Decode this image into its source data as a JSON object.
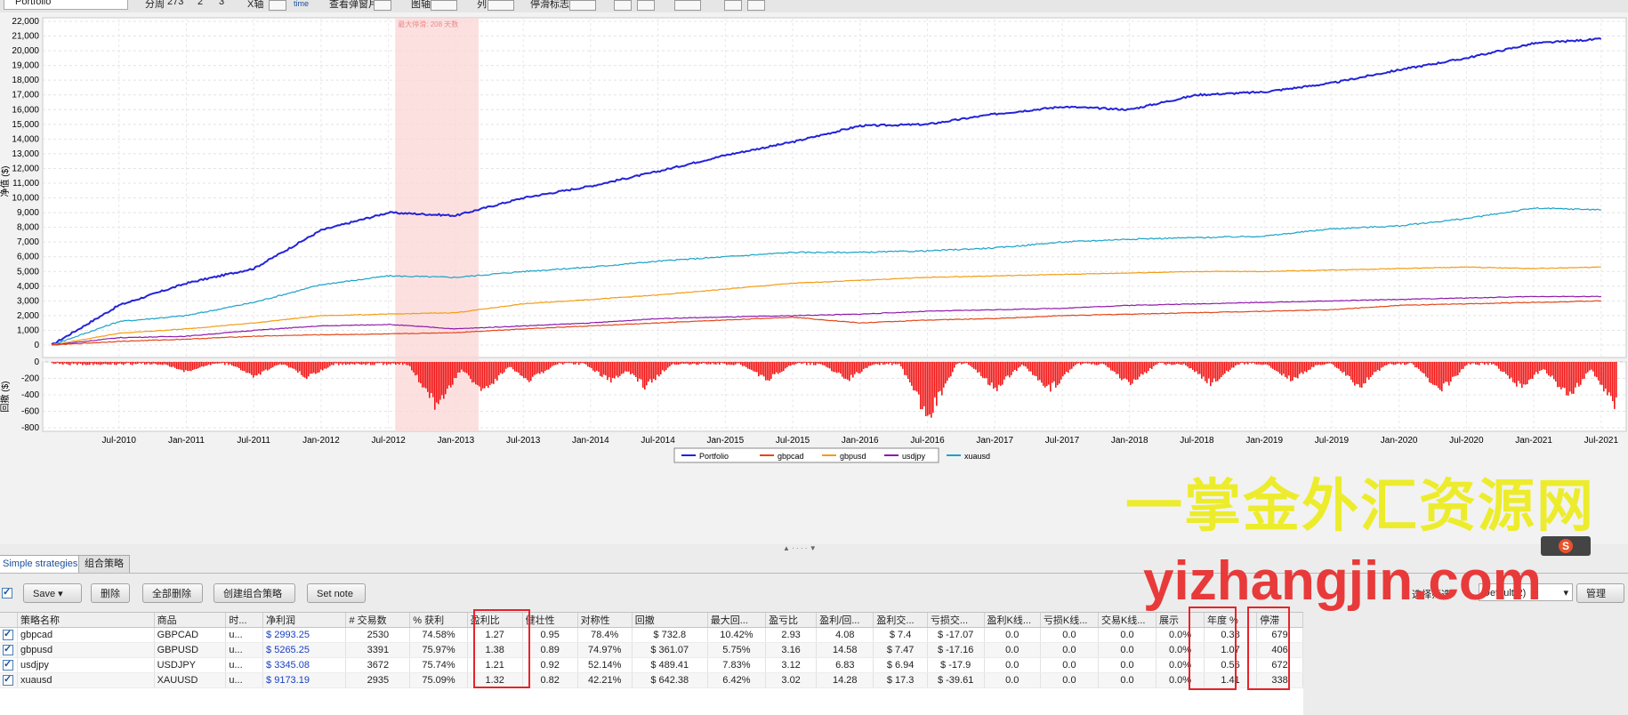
{
  "toolbar": {
    "portfolio_select": "Portfolio",
    "period_label": "分周",
    "period_value": "273",
    "period_opt2": "2",
    "period_opt3": "3",
    "xaxis_label": "X轴",
    "time_label": "time",
    "view_label": "查看弹窗片",
    "chart_label": "图轴",
    "col_label": "列",
    "stop_label": "停滑标志"
  },
  "chart": {
    "drawdown_annotation": "最大停滑: 208 天数",
    "y_label_top": "净值 ($)",
    "y_label_bottom": "回撤 ($)",
    "legend": [
      {
        "name": "Portfolio",
        "color": "#2323d8"
      },
      {
        "name": "gbpcad",
        "color": "#e2471b"
      },
      {
        "name": "gbpusd",
        "color": "#f39c12"
      },
      {
        "name": "usdjpy",
        "color": "#8e1aab"
      },
      {
        "name": "xuausd",
        "color": "#1aa3c8"
      }
    ]
  },
  "chart_data": {
    "type": "line",
    "ylim": [
      0,
      22000
    ],
    "yticks": [
      "0",
      "1,000",
      "2,000",
      "3,000",
      "4,000",
      "5,000",
      "6,000",
      "7,000",
      "8,000",
      "9,000",
      "10,000",
      "11,000",
      "12,000",
      "13,000",
      "14,000",
      "15,000",
      "16,000",
      "17,000",
      "18,000",
      "19,000",
      "20,000",
      "21,000",
      "22,000"
    ],
    "x_tick_labels": [
      "Jul-2010",
      "Jan-2011",
      "Jul-2011",
      "Jan-2012",
      "Jul-2012",
      "Jan-2013",
      "Jul-2013",
      "Jan-2014",
      "Jul-2014",
      "Jan-2015",
      "Jul-2015",
      "Jan-2016",
      "Jul-2016",
      "Jan-2017",
      "Jul-2017",
      "Jan-2018",
      "Jul-2018",
      "Jan-2019",
      "Jul-2019",
      "Jan-2020",
      "Jul-2020",
      "Jan-2021",
      "Jul-2021"
    ],
    "x_years": [
      2010.0,
      2010.5,
      2011.0,
      2011.5,
      2012.0,
      2012.5,
      2013.0,
      2013.5,
      2014.0,
      2014.5,
      2015.0,
      2015.5,
      2016.0,
      2016.5,
      2017.0,
      2017.5,
      2018.0,
      2018.5,
      2019.0,
      2019.5,
      2020.0,
      2020.5,
      2021.0,
      2021.5
    ],
    "series": [
      {
        "name": "Portfolio",
        "values": [
          0,
          2700,
          4200,
          5200,
          7800,
          9000,
          8800,
          10000,
          10800,
          11800,
          12900,
          13800,
          14900,
          15000,
          15700,
          16200,
          16000,
          17000,
          17200,
          17800,
          18700,
          19500,
          20500,
          20800
        ]
      },
      {
        "name": "xuausd",
        "values": [
          0,
          1600,
          2000,
          2900,
          4100,
          4700,
          4600,
          5000,
          5300,
          5700,
          6000,
          6300,
          6300,
          6400,
          6600,
          7000,
          7200,
          7300,
          7400,
          7900,
          8100,
          8600,
          9300,
          9200
        ]
      },
      {
        "name": "gbpusd",
        "values": [
          0,
          800,
          1100,
          1500,
          2000,
          2100,
          2200,
          2800,
          3100,
          3400,
          3800,
          4200,
          4400,
          4600,
          4700,
          4800,
          4900,
          5000,
          5000,
          5100,
          5200,
          5300,
          5200,
          5300
        ]
      },
      {
        "name": "usdjpy",
        "values": [
          0,
          500,
          600,
          1000,
          1300,
          1400,
          1100,
          1300,
          1500,
          1800,
          1900,
          2000,
          2100,
          2300,
          2400,
          2500,
          2700,
          2800,
          2900,
          3000,
          3100,
          3200,
          3300,
          3300
        ]
      },
      {
        "name": "gbpcad",
        "values": [
          0,
          250,
          400,
          600,
          700,
          750,
          850,
          1100,
          1300,
          1500,
          1700,
          1900,
          1500,
          1700,
          1800,
          2000,
          2100,
          2200,
          2300,
          2400,
          2700,
          2800,
          2900,
          3000
        ]
      }
    ],
    "drawdown": {
      "ylim": [
        -800,
        0
      ],
      "yticks": [
        "0",
        "-200",
        "-400",
        "-600",
        "-800"
      ]
    }
  },
  "tabs": [
    {
      "label": "Simple strategies"
    },
    {
      "label": "组合策略"
    }
  ],
  "buttons": {
    "save": "Save",
    "delete": "删除",
    "delete_all": "全部删除",
    "create_combo": "创建组合策略",
    "set_note": "Set note",
    "filter_label": "选择筛选",
    "default_select": "Default(2)",
    "manage": "管理"
  },
  "table": {
    "headers": [
      "策略名称",
      "商品",
      "时...",
      "净利润",
      "# 交易数",
      "% 获利",
      "盈利比",
      "健壮性",
      "对称性",
      "回撤",
      "最大回...",
      "盈亏比",
      "盈利/回...",
      "盈利交...",
      "亏损交...",
      "盈利K线...",
      "亏损K线...",
      "交易K线...",
      "展示",
      "年度 %",
      "停滞"
    ],
    "rows": [
      [
        "gbpcad",
        "GBPCAD",
        "u...",
        "$ 2993.25",
        "2530",
        "74.58%",
        "1.27",
        "0.95",
        "78.4%",
        "$ 732.8",
        "10.42%",
        "2.93",
        "4.08",
        "$ 7.4",
        "$ -17.07",
        "0.0",
        "0.0",
        "0.0",
        "0.0%",
        "0.38",
        "679"
      ],
      [
        "gbpusd",
        "GBPUSD",
        "u...",
        "$ 5265.25",
        "3391",
        "75.97%",
        "1.38",
        "0.89",
        "74.97%",
        "$ 361.07",
        "5.75%",
        "3.16",
        "14.58",
        "$ 7.47",
        "$ -17.16",
        "0.0",
        "0.0",
        "0.0",
        "0.0%",
        "1.07",
        "406"
      ],
      [
        "usdjpy",
        "USDJPY",
        "u...",
        "$ 3345.08",
        "3672",
        "75.74%",
        "1.21",
        "0.92",
        "52.14%",
        "$ 489.41",
        "7.83%",
        "3.12",
        "6.83",
        "$ 6.94",
        "$ -17.9",
        "0.0",
        "0.0",
        "0.0",
        "0.0%",
        "0.56",
        "672"
      ],
      [
        "xuausd",
        "XAUUSD",
        "u...",
        "$ 9173.19",
        "2935",
        "75.09%",
        "1.32",
        "0.82",
        "42.21%",
        "$ 642.38",
        "6.42%",
        "3.02",
        "14.28",
        "$ 17.3",
        "$ -39.61",
        "0.0",
        "0.0",
        "0.0",
        "0.0%",
        "1.41",
        "338"
      ]
    ]
  },
  "watermark": {
    "cn": "一掌金外汇资源网",
    "url": "yizhangjin.com"
  }
}
